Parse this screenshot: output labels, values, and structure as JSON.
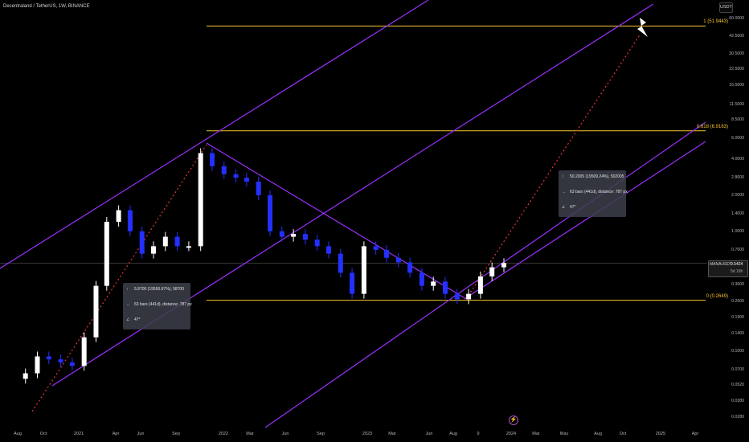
{
  "header": {
    "symbol_title": "Decentraland / TetherUS, 1W, BINANCE",
    "currency": "USDT"
  },
  "price_badge": {
    "symbol": "MANAUSDT",
    "price": "0.5424",
    "countdown": "5d 19h"
  },
  "fib_levels": [
    {
      "label": "1 (51.9443)",
      "value": 51.9443
    },
    {
      "label": "0.618 (6.9163)",
      "value": 6.9163
    },
    {
      "label": "0 (0.2649)",
      "value": 0.2649
    }
  ],
  "measure_boxes": [
    {
      "price_text": "5.8700 (19566.67%), 58700",
      "bars_text": "63 bars (441d), distance: 787 px",
      "angle_text": "47°"
    },
    {
      "price_text": "50.2005 (19509.24%), 502005",
      "bars_text": "63 bars (441d), distance: 787 px",
      "angle_text": "47°"
    }
  ],
  "colors": {
    "background": "#000000",
    "channel": "#9b30ff",
    "fib": "#f7c531",
    "projection": "#e53935",
    "candle_up": "#ffffff",
    "candle_down": "#2430ff"
  },
  "icons": [
    "lightning-bolt-icon",
    "tradingview-logo-icon",
    "price-range-icon",
    "date-range-icon",
    "angle-icon"
  ],
  "chart_data": {
    "type": "candlestick",
    "title": "Decentraland / TetherUS, 1W, BINANCE",
    "y_scale": "log",
    "y_ticks": [
      "60.0000",
      "42.5000",
      "30.5000",
      "22.5000",
      "16.5000",
      "11.5000",
      "8.5000",
      "6.0000",
      "4.0000",
      "2.8000",
      "2.0000",
      "1.4000",
      "1.0000",
      "0.7000",
      "0.5000",
      "0.3600",
      "0.2600",
      "0.1900",
      "0.1400",
      "0.1000",
      "0.0700",
      "0.0520",
      "0.0380",
      "0.0280"
    ],
    "x_ticks": [
      "Aug",
      "Oct",
      "2021",
      "Apr",
      "Jun",
      "Sep",
      "2022",
      "Mar",
      "Jun",
      "Sep",
      "2023",
      "Mar",
      "Jun",
      "Aug",
      "9",
      "2024",
      "Mar",
      "May",
      "Aug",
      "Oct",
      "2025",
      "Apr"
    ],
    "ylim": [
      0.025,
      75
    ],
    "grid": false,
    "price_series": [
      {
        "date": "2020-08",
        "close": 0.065
      },
      {
        "date": "2020-09",
        "close": 0.09
      },
      {
        "date": "2020-10",
        "close": 0.085
      },
      {
        "date": "2020-11",
        "close": 0.08
      },
      {
        "date": "2020-12",
        "close": 0.075
      },
      {
        "date": "2021-01",
        "close": 0.13
      },
      {
        "date": "2021-02",
        "close": 0.35
      },
      {
        "date": "2021-03",
        "close": 1.2
      },
      {
        "date": "2021-04",
        "close": 1.5
      },
      {
        "date": "2021-05",
        "close": 1.0
      },
      {
        "date": "2021-06",
        "close": 0.65
      },
      {
        "date": "2021-07",
        "close": 0.75
      },
      {
        "date": "2021-08",
        "close": 0.9
      },
      {
        "date": "2021-09",
        "close": 0.75
      },
      {
        "date": "2021-10",
        "close": 0.75
      },
      {
        "date": "2021-11",
        "close": 4.5
      },
      {
        "date": "2021-12",
        "close": 3.5
      },
      {
        "date": "2022-01",
        "close": 3.0
      },
      {
        "date": "2022-02",
        "close": 2.8
      },
      {
        "date": "2022-03",
        "close": 2.6
      },
      {
        "date": "2022-04",
        "close": 2.0
      },
      {
        "date": "2022-05",
        "close": 1.0
      },
      {
        "date": "2022-06",
        "close": 0.9
      },
      {
        "date": "2022-07",
        "close": 0.95
      },
      {
        "date": "2022-08",
        "close": 0.85
      },
      {
        "date": "2022-09",
        "close": 0.75
      },
      {
        "date": "2022-10",
        "close": 0.65
      },
      {
        "date": "2022-11",
        "close": 0.45
      },
      {
        "date": "2022-12",
        "close": 0.3
      },
      {
        "date": "2023-01",
        "close": 0.75
      },
      {
        "date": "2023-02",
        "close": 0.7
      },
      {
        "date": "2023-03",
        "close": 0.6
      },
      {
        "date": "2023-04",
        "close": 0.55
      },
      {
        "date": "2023-05",
        "close": 0.45
      },
      {
        "date": "2023-06",
        "close": 0.35
      },
      {
        "date": "2023-07",
        "close": 0.38
      },
      {
        "date": "2023-08",
        "close": 0.3
      },
      {
        "date": "2023-09",
        "close": 0.27
      },
      {
        "date": "2023-10",
        "close": 0.3
      },
      {
        "date": "2023-11",
        "close": 0.42
      },
      {
        "date": "2023-12",
        "close": 0.5
      },
      {
        "date": "2024-01",
        "close": 0.5424
      }
    ]
  }
}
